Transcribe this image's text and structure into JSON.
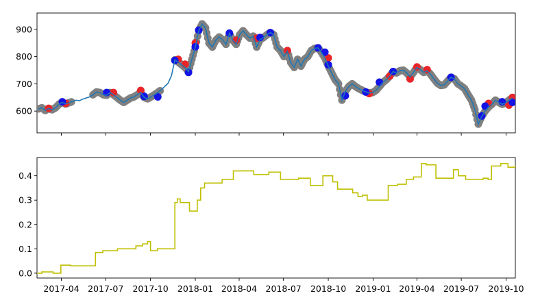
{
  "chart_data": [
    {
      "type": "line",
      "panel": "top",
      "x_axis": "date",
      "xlim": [
        "2017-02-10",
        "2019-10-20"
      ],
      "ylim": [
        520,
        960
      ],
      "yticks": [
        600,
        700,
        800,
        900
      ],
      "ytick_labels": [
        "600",
        "700",
        "800",
        "900"
      ],
      "grid": false,
      "line_color": "#1f77b4",
      "marker_colors": {
        "red": "#e8262a",
        "blue": "#1414e6",
        "gray": "#808080"
      },
      "series": [
        {
          "values": [
            [
              "2017-02-13",
              608
            ],
            [
              "2017-02-20",
              612
            ],
            [
              "2017-02-27",
              602
            ],
            [
              "2017-03-06",
              610
            ],
            [
              "2017-03-13",
              605
            ],
            [
              "2017-03-20",
              612
            ],
            [
              "2017-03-27",
              625
            ],
            [
              "2017-04-03",
              632
            ],
            [
              "2017-04-10",
              626
            ],
            [
              "2017-04-17",
              631
            ],
            [
              "2017-04-24",
              635
            ],
            [
              "2017-05-01",
              640
            ],
            [
              "2017-05-08",
              638
            ],
            [
              "2017-05-15",
              644
            ],
            [
              "2017-05-22",
              648
            ],
            [
              "2017-05-29",
              652
            ],
            [
              "2017-06-05",
              660
            ],
            [
              "2017-06-12",
              670
            ],
            [
              "2017-06-19",
              668
            ],
            [
              "2017-06-26",
              660
            ],
            [
              "2017-07-03",
              658
            ],
            [
              "2017-07-10",
              668
            ],
            [
              "2017-07-17",
              660
            ],
            [
              "2017-07-24",
              650
            ],
            [
              "2017-07-31",
              640
            ],
            [
              "2017-08-07",
              632
            ],
            [
              "2017-08-14",
              640
            ],
            [
              "2017-08-21",
              648
            ],
            [
              "2017-08-28",
              652
            ],
            [
              "2017-09-04",
              660
            ],
            [
              "2017-09-11",
              668
            ],
            [
              "2017-09-18",
              650
            ],
            [
              "2017-09-25",
              645
            ],
            [
              "2017-10-02",
              652
            ],
            [
              "2017-10-09",
              660
            ],
            [
              "2017-10-16",
              668
            ],
            [
              "2017-10-23",
              678
            ],
            [
              "2017-10-30",
              690
            ],
            [
              "2017-11-06",
              702
            ],
            [
              "2017-11-13",
              730
            ],
            [
              "2017-11-20",
              788
            ],
            [
              "2017-11-27",
              780
            ],
            [
              "2017-12-04",
              770
            ],
            [
              "2017-12-11",
              760
            ],
            [
              "2017-12-18",
              745
            ],
            [
              "2017-12-25",
              790
            ],
            [
              "2018-01-01",
              835
            ],
            [
              "2018-01-08",
              895
            ],
            [
              "2018-01-15",
              920
            ],
            [
              "2018-01-22",
              905
            ],
            [
              "2018-01-29",
              850
            ],
            [
              "2018-02-05",
              835
            ],
            [
              "2018-02-12",
              860
            ],
            [
              "2018-02-19",
              872
            ],
            [
              "2018-02-26",
              862
            ],
            [
              "2018-03-05",
              845
            ],
            [
              "2018-03-12",
              885
            ],
            [
              "2018-03-19",
              860
            ],
            [
              "2018-03-26",
              845
            ],
            [
              "2018-04-02",
              880
            ],
            [
              "2018-04-09",
              895
            ],
            [
              "2018-04-16",
              880
            ],
            [
              "2018-04-23",
              868
            ],
            [
              "2018-04-30",
              875
            ],
            [
              "2018-05-07",
              835
            ],
            [
              "2018-05-14",
              862
            ],
            [
              "2018-05-21",
              870
            ],
            [
              "2018-05-28",
              880
            ],
            [
              "2018-06-04",
              888
            ],
            [
              "2018-06-11",
              880
            ],
            [
              "2018-06-18",
              835
            ],
            [
              "2018-06-25",
              822
            ],
            [
              "2018-07-02",
              800
            ],
            [
              "2018-07-09",
              820
            ],
            [
              "2018-07-16",
              778
            ],
            [
              "2018-07-23",
              760
            ],
            [
              "2018-07-30",
              790
            ],
            [
              "2018-08-06",
              765
            ],
            [
              "2018-08-13",
              790
            ],
            [
              "2018-08-20",
              800
            ],
            [
              "2018-08-27",
              822
            ],
            [
              "2018-09-03",
              830
            ],
            [
              "2018-09-10",
              832
            ],
            [
              "2018-09-17",
              815
            ],
            [
              "2018-09-24",
              795
            ],
            [
              "2018-10-01",
              765
            ],
            [
              "2018-10-08",
              740
            ],
            [
              "2018-10-15",
              715
            ],
            [
              "2018-10-22",
              700
            ],
            [
              "2018-10-29",
              640
            ],
            [
              "2018-11-05",
              672
            ],
            [
              "2018-11-12",
              690
            ],
            [
              "2018-11-19",
              700
            ],
            [
              "2018-11-26",
              690
            ],
            [
              "2018-12-03",
              682
            ],
            [
              "2018-12-10",
              676
            ],
            [
              "2018-12-17",
              670
            ],
            [
              "2018-12-24",
              666
            ],
            [
              "2018-12-31",
              668
            ],
            [
              "2019-01-07",
              676
            ],
            [
              "2019-01-14",
              690
            ],
            [
              "2019-01-21",
              705
            ],
            [
              "2019-01-28",
              715
            ],
            [
              "2019-02-04",
              728
            ],
            [
              "2019-02-11",
              745
            ],
            [
              "2019-02-18",
              740
            ],
            [
              "2019-02-25",
              748
            ],
            [
              "2019-03-04",
              750
            ],
            [
              "2019-03-11",
              740
            ],
            [
              "2019-03-18",
              725
            ],
            [
              "2019-03-25",
              742
            ],
            [
              "2019-04-01",
              760
            ],
            [
              "2019-04-08",
              752
            ],
            [
              "2019-04-15",
              742
            ],
            [
              "2019-04-22",
              748
            ],
            [
              "2019-04-29",
              735
            ],
            [
              "2019-05-06",
              718
            ],
            [
              "2019-05-13",
              702
            ],
            [
              "2019-05-20",
              694
            ],
            [
              "2019-05-27",
              696
            ],
            [
              "2019-06-03",
              710
            ],
            [
              "2019-06-10",
              724
            ],
            [
              "2019-06-17",
              718
            ],
            [
              "2019-06-24",
              700
            ],
            [
              "2019-07-01",
              692
            ],
            [
              "2019-07-08",
              682
            ],
            [
              "2019-07-15",
              660
            ],
            [
              "2019-07-22",
              640
            ],
            [
              "2019-07-29",
              605
            ],
            [
              "2019-08-05",
              552
            ],
            [
              "2019-08-12",
              580
            ],
            [
              "2019-08-19",
              600
            ],
            [
              "2019-08-26",
              615
            ],
            [
              "2019-09-02",
              625
            ],
            [
              "2019-09-09",
              640
            ],
            [
              "2019-09-16",
              632
            ],
            [
              "2019-09-23",
              625
            ],
            [
              "2019-09-30",
              630
            ],
            [
              "2019-10-07",
              640
            ],
            [
              "2019-10-14",
              648
            ]
          ]
        }
      ],
      "markers": {
        "red": [
          [
            "2017-03-06",
            610
          ],
          [
            "2017-04-10",
            628
          ],
          [
            "2017-07-17",
            668
          ],
          [
            "2017-09-11",
            676
          ],
          [
            "2017-11-27",
            790
          ],
          [
            "2017-12-11",
            772
          ],
          [
            "2018-01-01",
            850
          ],
          [
            "2018-03-26",
            860
          ],
          [
            "2018-05-07",
            868
          ],
          [
            "2018-07-09",
            822
          ],
          [
            "2018-10-01",
            795
          ],
          [
            "2018-12-24",
            664
          ],
          [
            "2019-02-04",
            728
          ],
          [
            "2019-03-18",
            718
          ],
          [
            "2019-04-01",
            762
          ],
          [
            "2019-04-22",
            752
          ],
          [
            "2019-08-26",
            628
          ],
          [
            "2019-10-07",
            622
          ],
          [
            "2019-10-14",
            650
          ]
        ],
        "blue": [
          [
            "2017-04-03",
            634
          ],
          [
            "2017-07-03",
            668
          ],
          [
            "2017-09-18",
            654
          ],
          [
            "2017-10-16",
            652
          ],
          [
            "2017-11-20",
            786
          ],
          [
            "2017-12-18",
            742
          ],
          [
            "2018-01-01",
            836
          ],
          [
            "2018-01-08",
            897
          ],
          [
            "2018-03-12",
            886
          ],
          [
            "2018-05-14",
            870
          ],
          [
            "2018-06-04",
            888
          ],
          [
            "2018-09-10",
            832
          ],
          [
            "2018-09-24",
            816
          ],
          [
            "2018-10-01",
            770
          ],
          [
            "2018-11-05",
            656
          ],
          [
            "2018-12-17",
            670
          ],
          [
            "2019-01-14",
            706
          ],
          [
            "2019-02-11",
            745
          ],
          [
            "2019-06-10",
            724
          ],
          [
            "2019-08-12",
            582
          ],
          [
            "2019-08-19",
            618
          ],
          [
            "2019-09-23",
            634
          ],
          [
            "2019-10-14",
            632
          ]
        ]
      }
    },
    {
      "type": "line",
      "panel": "bottom",
      "x_axis": "date",
      "xlim": [
        "2017-02-10",
        "2019-10-20"
      ],
      "ylim": [
        -0.02,
        0.475
      ],
      "yticks": [
        0.0,
        0.1,
        0.2,
        0.3,
        0.4
      ],
      "ytick_labels": [
        "0.0",
        "0.1",
        "0.2",
        "0.3",
        "0.4"
      ],
      "xticks": [
        "2017-04-01",
        "2017-07-01",
        "2017-10-01",
        "2018-01-01",
        "2018-04-01",
        "2018-07-01",
        "2018-10-01",
        "2019-01-01",
        "2019-04-01",
        "2019-07-01",
        "2019-10-01"
      ],
      "xtick_labels": [
        "2017-04",
        "2017-07",
        "2017-10",
        "2018-01",
        "2018-04",
        "2018-07",
        "2018-10",
        "2019-01",
        "2019-04",
        "2019-07",
        "2019-10"
      ],
      "grid": false,
      "line_color": "#bfbf00",
      "step": true,
      "series": [
        {
          "values": [
            [
              "2017-02-10",
              0.0
            ],
            [
              "2017-02-20",
              0.005
            ],
            [
              "2017-03-15",
              0.0
            ],
            [
              "2017-03-31",
              0.033
            ],
            [
              "2017-04-20",
              0.03
            ],
            [
              "2017-06-10",
              0.085
            ],
            [
              "2017-06-25",
              0.092
            ],
            [
              "2017-07-25",
              0.1
            ],
            [
              "2017-08-20",
              0.1
            ],
            [
              "2017-09-01",
              0.112
            ],
            [
              "2017-09-15",
              0.12
            ],
            [
              "2017-09-25",
              0.13
            ],
            [
              "2017-10-01",
              0.092
            ],
            [
              "2017-10-15",
              0.1
            ],
            [
              "2017-11-20",
              0.29
            ],
            [
              "2017-11-25",
              0.305
            ],
            [
              "2017-12-01",
              0.29
            ],
            [
              "2017-12-20",
              0.255
            ],
            [
              "2018-01-05",
              0.3
            ],
            [
              "2018-01-12",
              0.35
            ],
            [
              "2018-01-20",
              0.37
            ],
            [
              "2018-02-25",
              0.385
            ],
            [
              "2018-03-20",
              0.42
            ],
            [
              "2018-05-01",
              0.405
            ],
            [
              "2018-06-01",
              0.415
            ],
            [
              "2018-06-25",
              0.385
            ],
            [
              "2018-08-01",
              0.39
            ],
            [
              "2018-08-25",
              0.36
            ],
            [
              "2018-09-20",
              0.4
            ],
            [
              "2018-10-10",
              0.375
            ],
            [
              "2018-10-20",
              0.345
            ],
            [
              "2018-11-20",
              0.33
            ],
            [
              "2018-12-01",
              0.315
            ],
            [
              "2018-12-10",
              0.32
            ],
            [
              "2018-12-20",
              0.3
            ],
            [
              "2019-02-01",
              0.36
            ],
            [
              "2019-02-20",
              0.365
            ],
            [
              "2019-03-10",
              0.385
            ],
            [
              "2019-03-25",
              0.395
            ],
            [
              "2019-04-10",
              0.45
            ],
            [
              "2019-04-20",
              0.445
            ],
            [
              "2019-05-10",
              0.39
            ],
            [
              "2019-06-15",
              0.425
            ],
            [
              "2019-06-25",
              0.4
            ],
            [
              "2019-07-10",
              0.385
            ],
            [
              "2019-08-15",
              0.39
            ],
            [
              "2019-08-25",
              0.385
            ],
            [
              "2019-09-01",
              0.44
            ],
            [
              "2019-09-20",
              0.45
            ],
            [
              "2019-10-05",
              0.435
            ],
            [
              "2019-10-20",
              0.445
            ]
          ]
        }
      ]
    }
  ]
}
